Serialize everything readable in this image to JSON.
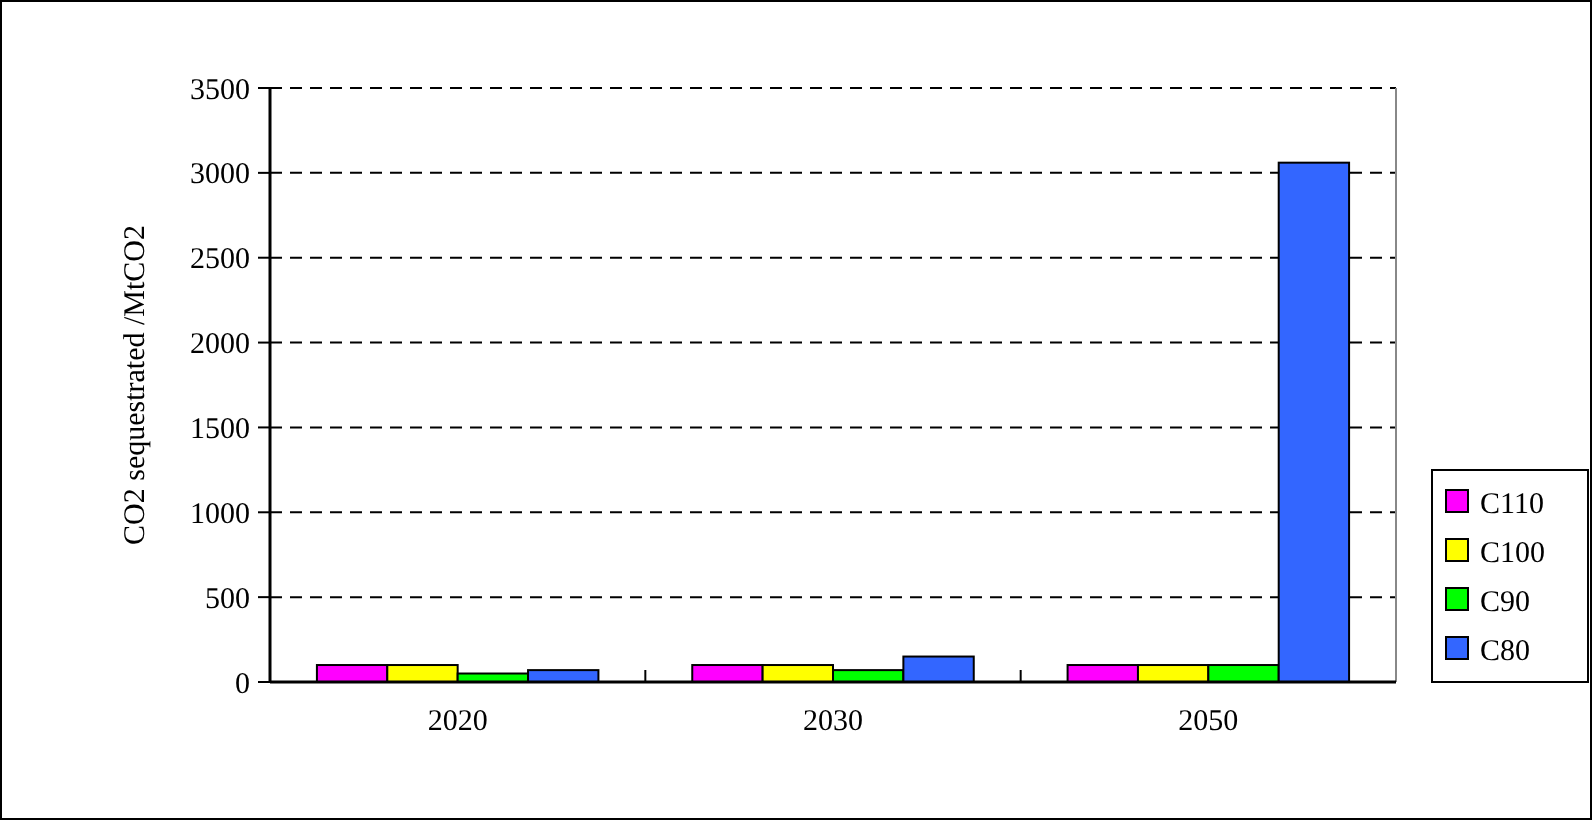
{
  "chart_data": {
    "type": "bar",
    "ylabel": "CO2 sequestrated /MtCO2",
    "categories": [
      "2020",
      "2030",
      "2050"
    ],
    "series": [
      {
        "name": "C110",
        "color": "#ff00ff",
        "values": [
          100,
          100,
          100
        ]
      },
      {
        "name": "C100",
        "color": "#ffff00",
        "values": [
          100,
          100,
          100
        ]
      },
      {
        "name": "C90",
        "color": "#00ff00",
        "values": [
          50,
          70,
          100
        ]
      },
      {
        "name": "C80",
        "color": "#3366ff",
        "values": [
          70,
          150,
          3060
        ]
      }
    ],
    "ylim": [
      0,
      3500
    ],
    "yticks": [
      0,
      500,
      1000,
      1500,
      2000,
      2500,
      3000,
      3500
    ],
    "grid": "y",
    "legend": "right"
  }
}
